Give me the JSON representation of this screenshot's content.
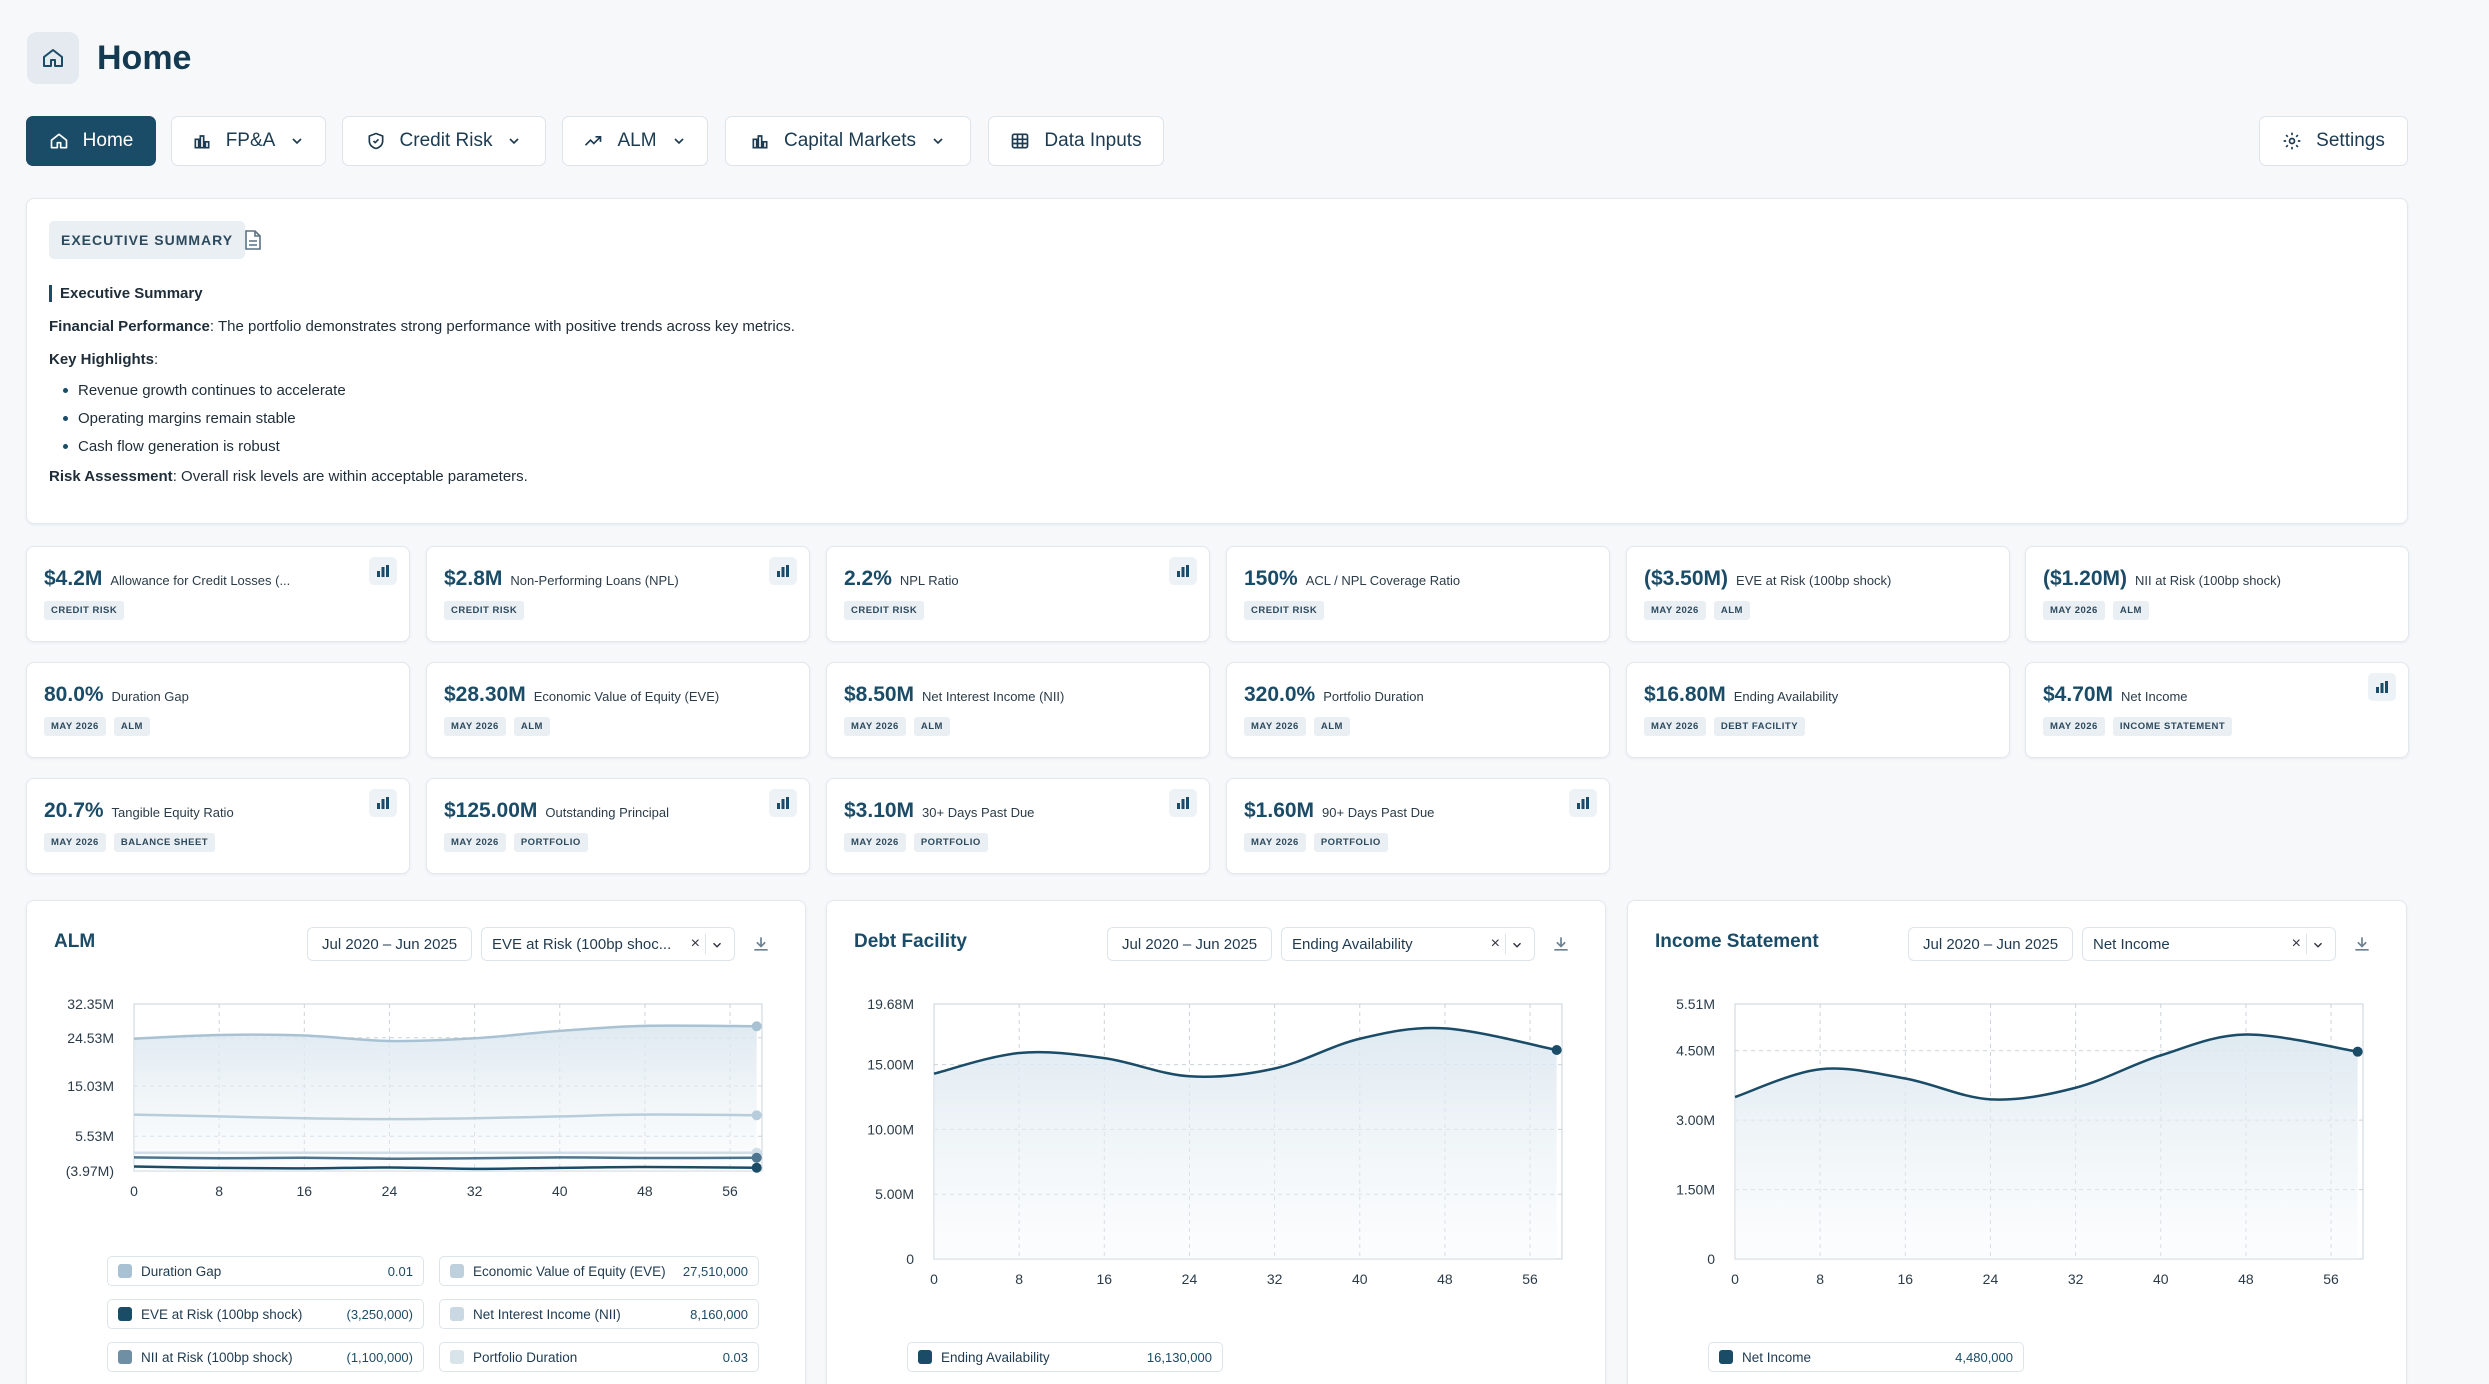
{
  "page": {
    "title": "Home"
  },
  "nav": {
    "home": "Home",
    "fpa": "FP&A",
    "credit_risk": "Credit Risk",
    "alm": "ALM",
    "capital_markets": "Capital Markets",
    "data_inputs": "Data Inputs",
    "settings": "Settings"
  },
  "exec": {
    "tag": "EXECUTIVE SUMMARY",
    "heading": "Executive Summary",
    "fin_label": "Financial Performance",
    "fin_text": ": The portfolio demonstrates strong performance with positive trends across key metrics.",
    "highlights_label": "Key Highlights",
    "highlights_colon": ":",
    "bullets": [
      "Revenue growth continues to accelerate",
      "Operating margins remain stable",
      "Cash flow generation is robust"
    ],
    "risk_label": "Risk Assessment",
    "risk_text": ": Overall risk levels are within acceptable parameters."
  },
  "kpis": [
    {
      "value": "$4.2M",
      "label": "Allowance for Credit Losses (...",
      "chips": [
        "CREDIT RISK"
      ],
      "icon": true
    },
    {
      "value": "$2.8M",
      "label": "Non-Performing Loans (NPL)",
      "chips": [
        "CREDIT RISK"
      ],
      "icon": true
    },
    {
      "value": "2.2%",
      "label": "NPL Ratio",
      "chips": [
        "CREDIT RISK"
      ],
      "icon": true
    },
    {
      "value": "150%",
      "label": "ACL / NPL Coverage Ratio",
      "chips": [
        "CREDIT RISK"
      ],
      "icon": false
    },
    {
      "value": "($3.50M)",
      "label": "EVE at Risk (100bp shock)",
      "chips": [
        "MAY 2026",
        "ALM"
      ],
      "icon": false
    },
    {
      "value": "($1.20M)",
      "label": "NII at Risk (100bp shock)",
      "chips": [
        "MAY 2026",
        "ALM"
      ],
      "icon": false
    },
    {
      "value": "80.0%",
      "label": "Duration Gap",
      "chips": [
        "MAY 2026",
        "ALM"
      ],
      "icon": false
    },
    {
      "value": "$28.30M",
      "label": "Economic Value of Equity (EVE)",
      "chips": [
        "MAY 2026",
        "ALM"
      ],
      "icon": false
    },
    {
      "value": "$8.50M",
      "label": "Net Interest Income (NII)",
      "chips": [
        "MAY 2026",
        "ALM"
      ],
      "icon": false
    },
    {
      "value": "320.0%",
      "label": "Portfolio Duration",
      "chips": [
        "MAY 2026",
        "ALM"
      ],
      "icon": false
    },
    {
      "value": "$16.80M",
      "label": "Ending Availability",
      "chips": [
        "MAY 2026",
        "DEBT FACILITY"
      ],
      "icon": false
    },
    {
      "value": "$4.70M",
      "label": "Net Income",
      "chips": [
        "MAY 2026",
        "INCOME STATEMENT"
      ],
      "icon": true
    },
    {
      "value": "20.7%",
      "label": "Tangible Equity Ratio",
      "chips": [
        "MAY 2026",
        "BALANCE SHEET"
      ],
      "icon": true
    },
    {
      "value": "$125.00M",
      "label": "Outstanding Principal",
      "chips": [
        "MAY 2026",
        "PORTFOLIO"
      ],
      "icon": true
    },
    {
      "value": "$3.10M",
      "label": "30+ Days Past Due",
      "chips": [
        "MAY 2026",
        "PORTFOLIO"
      ],
      "icon": true
    },
    {
      "value": "$1.60M",
      "label": "90+ Days Past Due",
      "chips": [
        "MAY 2026",
        "PORTFOLIO"
      ],
      "icon": true
    }
  ],
  "icons": {
    "home": "home-icon",
    "settings": "gear-icon",
    "chart": "bar-chart-icon",
    "download": "download-icon"
  },
  "charts": [
    {
      "title": "ALM",
      "range": "Jul 2020 – Jun 2025",
      "selected": "EVE at Risk (100bp shoc...",
      "legend": [
        {
          "name": "Duration Gap",
          "value": "0.01",
          "color": "#a9c2d3"
        },
        {
          "name": "Economic Value of Equity (EVE)",
          "value": "27,510,000",
          "color": "#bdd0dc"
        },
        {
          "name": "EVE at Risk (100bp shock)",
          "value": "(3,250,000)",
          "color": "#1a4b67"
        },
        {
          "name": "Net Interest Income (NII)",
          "value": "8,160,000",
          "color": "#c9d8e2"
        },
        {
          "name": "NII at Risk (100bp shock)",
          "value": "(1,100,000)",
          "color": "#6f8fa5"
        },
        {
          "name": "Portfolio Duration",
          "value": "0.03",
          "color": "#d9e3ea"
        }
      ]
    },
    {
      "title": "Debt Facility",
      "range": "Jul 2020 – Jun 2025",
      "selected": "Ending Availability",
      "legend": [
        {
          "name": "Ending Availability",
          "value": "16,130,000",
          "color": "#1a4b67"
        }
      ]
    },
    {
      "title": "Income Statement",
      "range": "Jul 2020 – Jun 2025",
      "selected": "Net Income",
      "legend": [
        {
          "name": "Net Income",
          "value": "4,480,000",
          "color": "#1a4b67"
        }
      ]
    }
  ],
  "chart_data": [
    {
      "type": "line",
      "title": "ALM",
      "x_ticks": [
        0,
        8,
        16,
        24,
        32,
        40,
        48,
        56
      ],
      "y_ticks": [
        "32.35M",
        "24.53M",
        "15.03M",
        "5.53M",
        "(3.97M)"
      ],
      "ylim": [
        -3970000,
        32350000
      ],
      "series": [
        {
          "name": "Economic Value of Equity (EVE)",
          "values": [
            24800000,
            25600000,
            25500000,
            24300000,
            24900000,
            26500000,
            27600000,
            27510000
          ]
        },
        {
          "name": "Net Interest Income (NII)",
          "values": [
            8300000,
            7900000,
            7500000,
            7300000,
            7500000,
            7900000,
            8300000,
            8160000
          ]
        },
        {
          "name": "Duration Gap",
          "values": [
            0.01,
            0.01,
            0.01,
            0.01,
            0.01,
            0.01,
            0.01,
            0.01
          ]
        },
        {
          "name": "Portfolio Duration",
          "values": [
            0.03,
            0.03,
            0.03,
            0.03,
            0.03,
            0.03,
            0.03,
            0.03
          ]
        },
        {
          "name": "NII at Risk (100bp shock)",
          "values": [
            -1000000,
            -1200000,
            -1100000,
            -1300000,
            -1200000,
            -1000000,
            -1150000,
            -1100000
          ]
        },
        {
          "name": "EVE at Risk (100bp shock)",
          "values": [
            -3000000,
            -3300000,
            -3400000,
            -3200000,
            -3500000,
            -3300000,
            -3100000,
            -3250000
          ]
        }
      ]
    },
    {
      "type": "area",
      "title": "Debt Facility",
      "x_ticks": [
        0,
        8,
        16,
        24,
        32,
        40,
        48,
        56
      ],
      "y_ticks": [
        "19.68M",
        "15.00M",
        "10.00M",
        "5.00M",
        "0"
      ],
      "ylim": [
        0,
        19680000
      ],
      "series": [
        {
          "name": "Ending Availability",
          "values": [
            14300000,
            15900000,
            15500000,
            14100000,
            14700000,
            17000000,
            17800000,
            16130000
          ]
        }
      ]
    },
    {
      "type": "area",
      "title": "Income Statement",
      "x_ticks": [
        0,
        8,
        16,
        24,
        32,
        40,
        48,
        56
      ],
      "y_ticks": [
        "5.51M",
        "4.50M",
        "3.00M",
        "1.50M",
        "0"
      ],
      "ylim": [
        0,
        5510000
      ],
      "series": [
        {
          "name": "Net Income",
          "values": [
            3500000,
            4100000,
            3900000,
            3450000,
            3700000,
            4400000,
            4850000,
            4480000
          ]
        }
      ]
    }
  ]
}
